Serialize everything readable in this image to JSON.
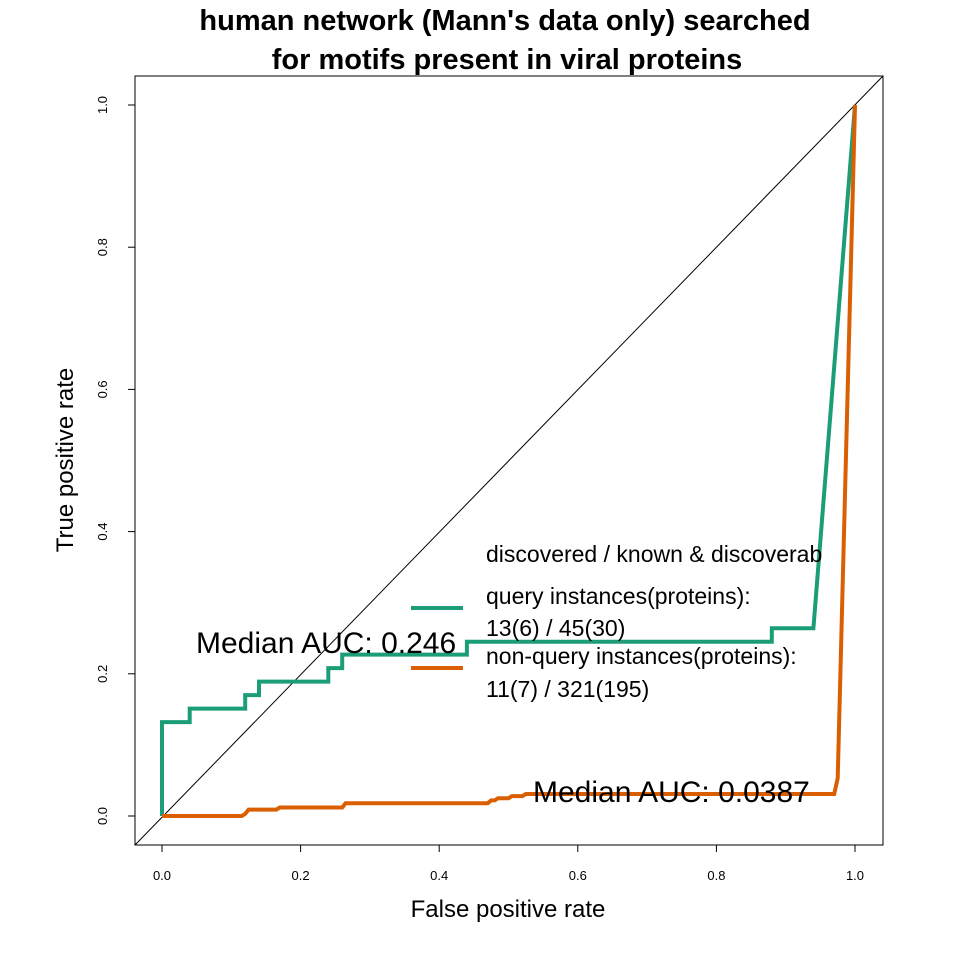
{
  "chart_data": {
    "type": "line",
    "title_lines": [
      "human network (Mann's data only) searched",
      "for motifs present in viral proteins"
    ],
    "xlabel": "False positive rate",
    "ylabel": "True positive rate",
    "xlim": [
      0.0,
      1.0
    ],
    "ylim": [
      0.0,
      1.0
    ],
    "x_ticks": [
      "0.0",
      "0.2",
      "0.4",
      "0.6",
      "0.8",
      "1.0"
    ],
    "y_ticks": [
      "0.0",
      "0.2",
      "0.4",
      "0.6",
      "0.8",
      "1.0"
    ],
    "grid": false,
    "diagonal": {
      "x": [
        0,
        1
      ],
      "y": [
        0,
        1
      ],
      "color": "#000000"
    },
    "legend": {
      "position": "center-right",
      "header": "discovered / known & discoverab",
      "entries": [
        {
          "line1": "query instances(proteins):",
          "line2": "13(6) / 45(30)",
          "color": "#1b9e77"
        },
        {
          "line1": "non-query instances(proteins):",
          "line2": "11(7) / 321(195)",
          "color": "#d95f02"
        }
      ]
    },
    "annotations": [
      "Median AUC: 0.246",
      "Median AUC: 0.0387"
    ],
    "series": [
      {
        "color": "#1b9e77",
        "x": [
          0.0,
          0.0,
          0.04,
          0.04,
          0.12,
          0.12,
          0.14,
          0.14,
          0.24,
          0.24,
          0.26,
          0.26,
          0.44,
          0.44,
          0.88,
          0.88,
          0.94,
          1.0
        ],
        "y": [
          0.0,
          0.132,
          0.132,
          0.151,
          0.151,
          0.17,
          0.17,
          0.189,
          0.189,
          0.208,
          0.208,
          0.227,
          0.227,
          0.245,
          0.245,
          0.264,
          0.264,
          1.0
        ]
      },
      {
        "color": "#d95f02",
        "x": [
          0.0,
          0.115,
          0.12,
          0.125,
          0.165,
          0.17,
          0.26,
          0.265,
          0.47,
          0.475,
          0.48,
          0.485,
          0.5,
          0.505,
          0.52,
          0.525,
          0.97,
          0.975,
          1.0
        ],
        "y": [
          0.0,
          0.0,
          0.003,
          0.009,
          0.009,
          0.012,
          0.012,
          0.018,
          0.018,
          0.022,
          0.022,
          0.025,
          0.025,
          0.028,
          0.028,
          0.031,
          0.031,
          0.053,
          1.0
        ]
      }
    ]
  }
}
